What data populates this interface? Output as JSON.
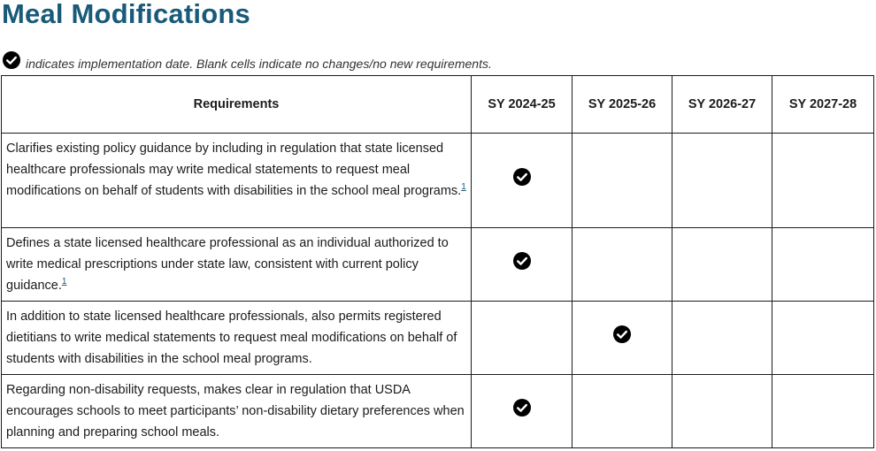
{
  "title": "Meal Modifications",
  "legend": {
    "icon": "check-circle-icon",
    "note": "indicates implementation date. Blank cells indicate no changes/no new requirements."
  },
  "table": {
    "headers": [
      "Requirements",
      "SY 2024-25",
      "SY 2025-26",
      "SY 2026-27",
      "SY 2027-28"
    ],
    "rows": [
      {
        "text": "Clarifies existing policy guidance by including in regulation that state licensed healthcare professionals may write medical statements to request meal modifications on behalf of students with disabilities in the school meal programs.",
        "footnote": "1",
        "checks": [
          true,
          false,
          false,
          false
        ]
      },
      {
        "text": "Defines a state licensed healthcare professional as an individual authorized to write medical prescriptions under state law, consistent with current policy guidance.",
        "footnote": "1",
        "checks": [
          true,
          false,
          false,
          false
        ]
      },
      {
        "text": "In addition to state licensed healthcare professionals, also permits registered dietitians to write medical statements to request meal modifications on behalf of students with disabilities in the school meal programs.",
        "footnote": "",
        "checks": [
          false,
          true,
          false,
          false
        ]
      },
      {
        "text": "Regarding non-disability requests, makes clear in regulation that USDA encourages schools to meet participants’ non-disability dietary preferences when planning and preparing school meals.",
        "footnote": "",
        "checks": [
          true,
          false,
          false,
          false
        ]
      }
    ]
  }
}
